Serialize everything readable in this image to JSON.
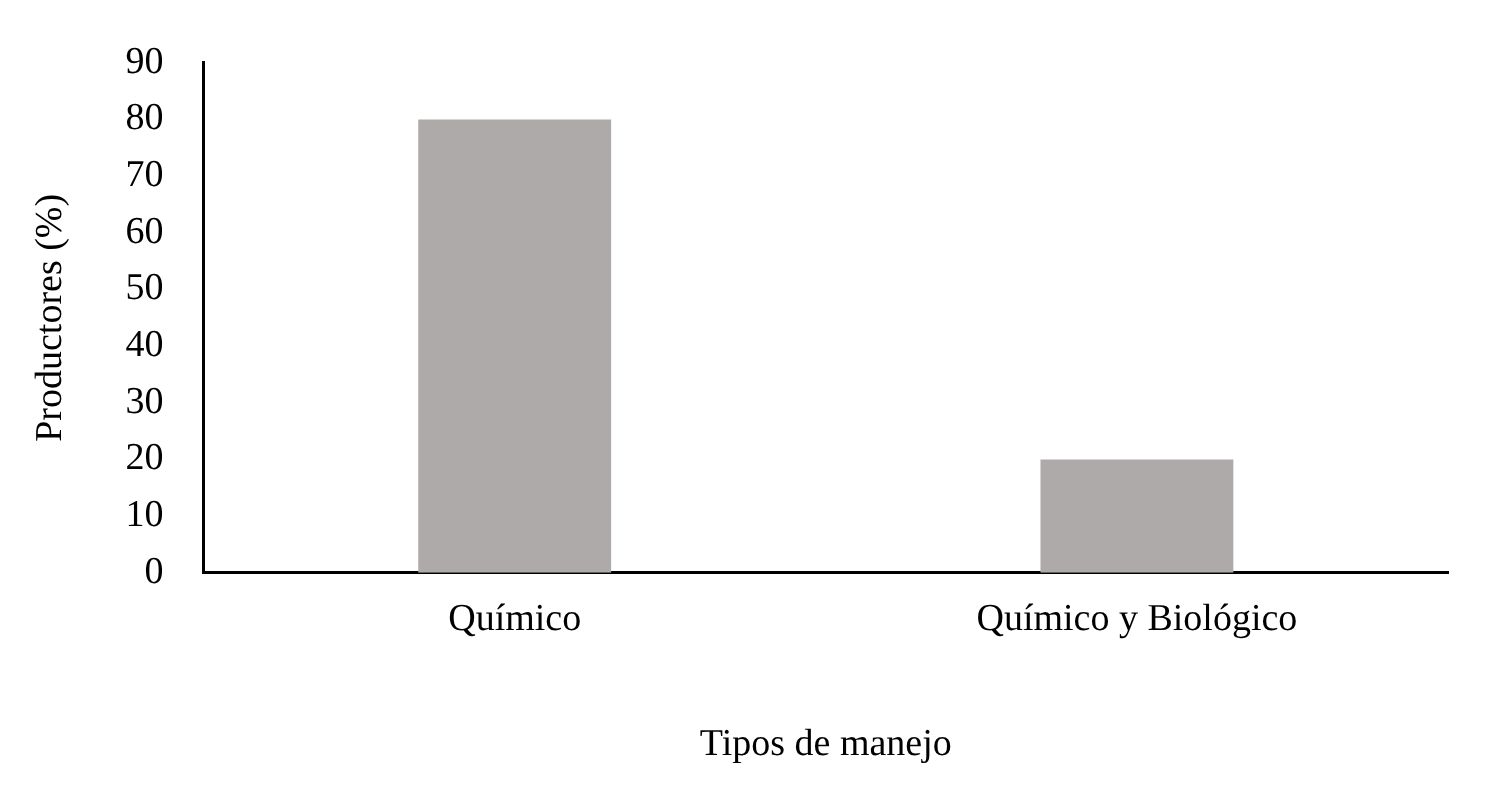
{
  "chart_data": {
    "type": "bar",
    "xlabel": "Tipos de manejo",
    "ylabel": "Productores (%)",
    "categories": [
      "Químico",
      "Químico y Biológico"
    ],
    "values": [
      80,
      20
    ],
    "color": "#aeaaaa",
    "ylim": [
      0,
      90
    ],
    "yticks": [
      0,
      10,
      20,
      30,
      40,
      50,
      60,
      70,
      80,
      90
    ],
    "grid": false,
    "legend": false
  }
}
